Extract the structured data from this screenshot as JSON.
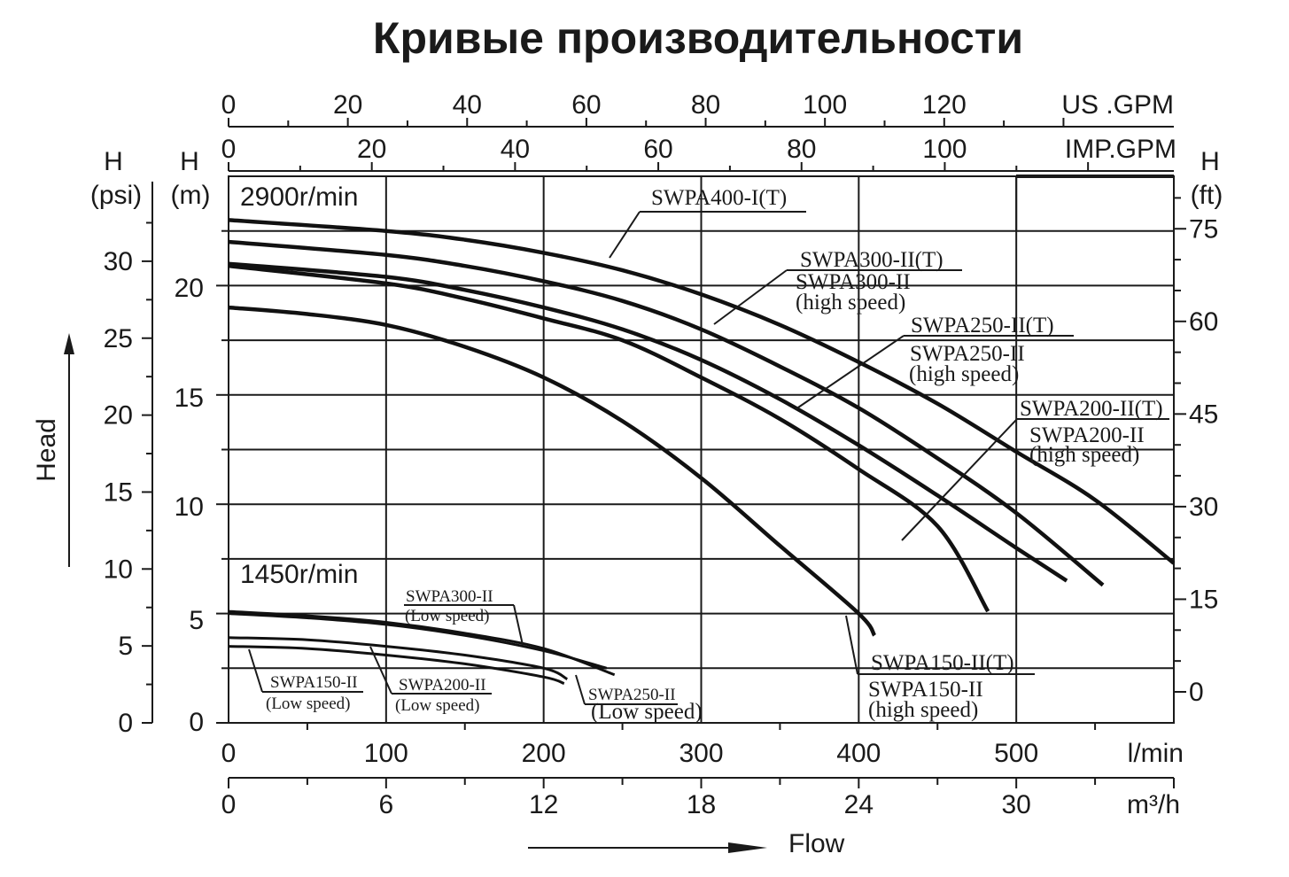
{
  "chart_data": {
    "type": "line",
    "title": "Кривые производительности",
    "xlabel": "Flow",
    "ylabel": "Head",
    "x_units": {
      "lmin": "l/min",
      "m3h": "m³/h",
      "us_gpm": "US .GPM",
      "imp_gpm": "IMP.GPM"
    },
    "y_units": {
      "psi_head": "H",
      "psi_unit": "(psi)",
      "m_head": "H",
      "m_unit": "(m)",
      "ft_head": "H",
      "ft_unit": "(ft)"
    },
    "xlim_lmin": [
      0,
      600
    ],
    "ylim_m": [
      0,
      25
    ],
    "axis_ticks": {
      "lmin": [
        "0",
        "100",
        "200",
        "300",
        "400",
        "500"
      ],
      "m3h": [
        "0",
        "6",
        "12",
        "18",
        "24",
        "30"
      ],
      "us_gpm": [
        "0",
        "20",
        "40",
        "60",
        "80",
        "100",
        "120"
      ],
      "imp_gpm": [
        "0",
        "20",
        "40",
        "60",
        "80",
        "100"
      ],
      "m": [
        "0",
        "5",
        "10",
        "15",
        "20"
      ],
      "psi": [
        "0",
        "5",
        "10",
        "15",
        "20",
        "25",
        "30"
      ],
      "ft": [
        "0",
        "15",
        "30",
        "45",
        "60",
        "75"
      ]
    },
    "speed_labels": {
      "high": "2900r/min",
      "low": "1450r/min"
    },
    "grid": true,
    "series": [
      {
        "group": "2900r/min",
        "x": [
          0,
          100,
          150,
          200,
          250,
          300,
          350,
          400,
          450,
          500,
          550,
          600
        ],
        "y": [
          23.0,
          22.5,
          22.1,
          21.5,
          20.7,
          19.6,
          18.2,
          16.5,
          14.6,
          12.4,
          10.2,
          7.3
        ]
      },
      {
        "group": "2900r/min",
        "x": [
          0,
          100,
          150,
          200,
          250,
          300,
          350,
          400,
          450,
          500,
          555
        ],
        "y": [
          22.0,
          21.4,
          20.9,
          20.2,
          19.3,
          18.0,
          16.3,
          14.4,
          12.1,
          9.6,
          6.3
        ]
      },
      {
        "group": "2900r/min",
        "x": [
          0,
          100,
          150,
          200,
          250,
          300,
          350,
          400,
          450,
          500,
          532
        ],
        "y": [
          21.0,
          20.4,
          19.8,
          19.0,
          18.0,
          16.6,
          14.8,
          12.7,
          10.4,
          8.0,
          6.5
        ]
      },
      {
        "group": "2900r/min",
        "x": [
          0,
          100,
          150,
          200,
          250,
          300,
          350,
          400,
          450,
          482
        ],
        "y": [
          20.9,
          20.1,
          19.4,
          18.5,
          17.5,
          15.8,
          13.9,
          11.6,
          9.0,
          5.1
        ]
      },
      {
        "group": "2900r/min",
        "x": [
          0,
          50,
          100,
          150,
          200,
          250,
          300,
          350,
          400,
          410
        ],
        "y": [
          19.0,
          18.7,
          18.2,
          17.2,
          15.8,
          13.8,
          11.2,
          8.1,
          5.0,
          4.0
        ]
      },
      {
        "group": "1450r/min",
        "x": [
          0,
          50,
          100,
          150,
          200,
          245
        ],
        "y": [
          5.1,
          4.9,
          4.6,
          4.1,
          3.4,
          2.2
        ]
      },
      {
        "group": "1450r/min",
        "x": [
          0,
          50,
          100,
          150,
          200,
          240
        ],
        "y": [
          5.0,
          4.8,
          4.5,
          4.0,
          3.3,
          2.5
        ]
      },
      {
        "group": "1450r/min",
        "x": [
          0,
          50,
          100,
          150,
          200,
          215
        ],
        "y": [
          3.9,
          3.8,
          3.5,
          3.1,
          2.5,
          2.0
        ]
      },
      {
        "group": "1450r/min",
        "x": [
          0,
          50,
          100,
          150,
          200,
          213
        ],
        "y": [
          3.5,
          3.4,
          3.1,
          2.7,
          2.1,
          1.8
        ]
      }
    ],
    "annotations": [
      {
        "lines": [
          "SWPA400-I(T)"
        ]
      },
      {
        "lines": [
          "SWPA300-II(T)",
          "SWPA300-II",
          "(high speed)"
        ]
      },
      {
        "lines": [
          "SWPA250-II(T)",
          "SWPA250-II",
          "(high speed)"
        ]
      },
      {
        "lines": [
          "SWPA200-II(T)",
          "SWPA200-II",
          "(high speed)"
        ]
      },
      {
        "lines": [
          "SWPA150-II(T)",
          "SWPA150-II",
          "(high speed)"
        ]
      },
      {
        "lines": [
          "SWPA300-II",
          "(Low speed)"
        ]
      },
      {
        "lines": [
          "SWPA250-II",
          "(Low speed)"
        ]
      },
      {
        "lines": [
          "SWPA200-II",
          "(Low speed)"
        ]
      },
      {
        "lines": [
          "SWPA150-II",
          "(Low speed)"
        ]
      }
    ]
  }
}
